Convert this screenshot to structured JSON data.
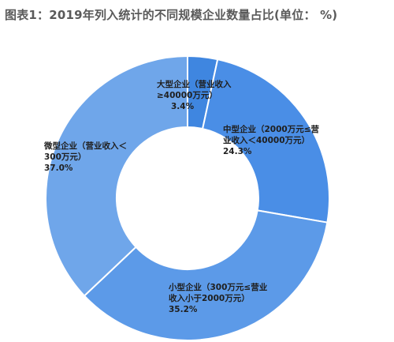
{
  "title": "图表1：2019年列入统计的不同规模企业数量占比(单位： %)",
  "chart_data": {
    "type": "pie",
    "title": "图表1：2019年列入统计的不同规模企业数量占比(单位： %)",
    "categories": [
      "大型企业（营业收入≥40000万元）",
      "中型企业（2000万元≤营业收入＜40000万元）",
      "小型企业（300万元≤营业收入小于2000万元）",
      "微型企业（营业收入＜300万元）"
    ],
    "values": [
      3.4,
      24.3,
      35.2,
      37.0
    ],
    "colors": [
      "#3f86e0",
      "#4a8ee6",
      "#5c9ae8",
      "#6fa6ea"
    ],
    "labels": [
      {
        "lines": [
          "大型企业（营业收入",
          "≥40000万元）",
          "3.4%"
        ]
      },
      {
        "lines": [
          "中型企业（2000万元≤营",
          "业收入＜40000万元）",
          "24.3%"
        ]
      },
      {
        "lines": [
          "小型企业（300万元≤营业",
          "收入小于2000万元）",
          "35.2%"
        ]
      },
      {
        "lines": [
          "微型企业（营业收入＜",
          "300万元）",
          "37.0%"
        ]
      }
    ],
    "legend": "none",
    "style": "donut"
  }
}
